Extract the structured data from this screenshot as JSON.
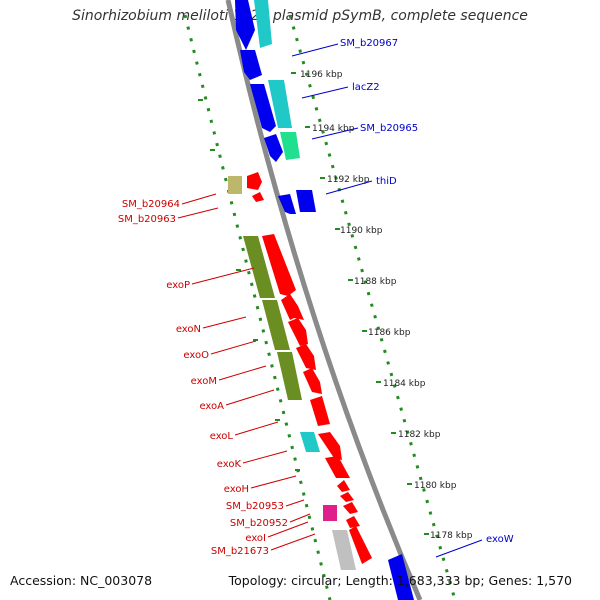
{
  "title": "Sinorhizobium meliloti 1021 plasmid pSymB, complete sequence",
  "footer": {
    "accession": "Accession: NC_003078",
    "summary": "Topology: circular; Length: 1,683,333 bp; Genes: 1,570"
  },
  "colors": {
    "backbone": "#888888",
    "ruler": "#228b22",
    "forward_label": "#cc0000",
    "reverse_label": "#0000cc",
    "cds_forward": "#ff0000",
    "cds_reverse": "#0000ee",
    "trna_like": "#20c8c8",
    "green_feature": "#20e090",
    "olive": "#6b8e23",
    "khaki": "#bdb76b",
    "magenta": "#e0208a",
    "grey_feature": "#c0c0c0"
  },
  "scale_ticks": [
    "1196 kbp",
    "1194 kbp",
    "1192 kbp",
    "1190 kbp",
    "1188 kbp",
    "1186 kbp",
    "1184 kbp",
    "1182 kbp",
    "1180 kbp",
    "1178 kbp"
  ],
  "left_labels": [
    "SM_b20964",
    "SM_b20963",
    "exoP",
    "exoN",
    "exoO",
    "exoM",
    "exoA",
    "exoL",
    "exoK",
    "exoH",
    "SM_b20953",
    "SM_b20952",
    "exoI",
    "SM_b21673"
  ],
  "right_labels": [
    "SM_b20967",
    "lacZ2",
    "SM_b20965",
    "thiD",
    "exoW"
  ]
}
